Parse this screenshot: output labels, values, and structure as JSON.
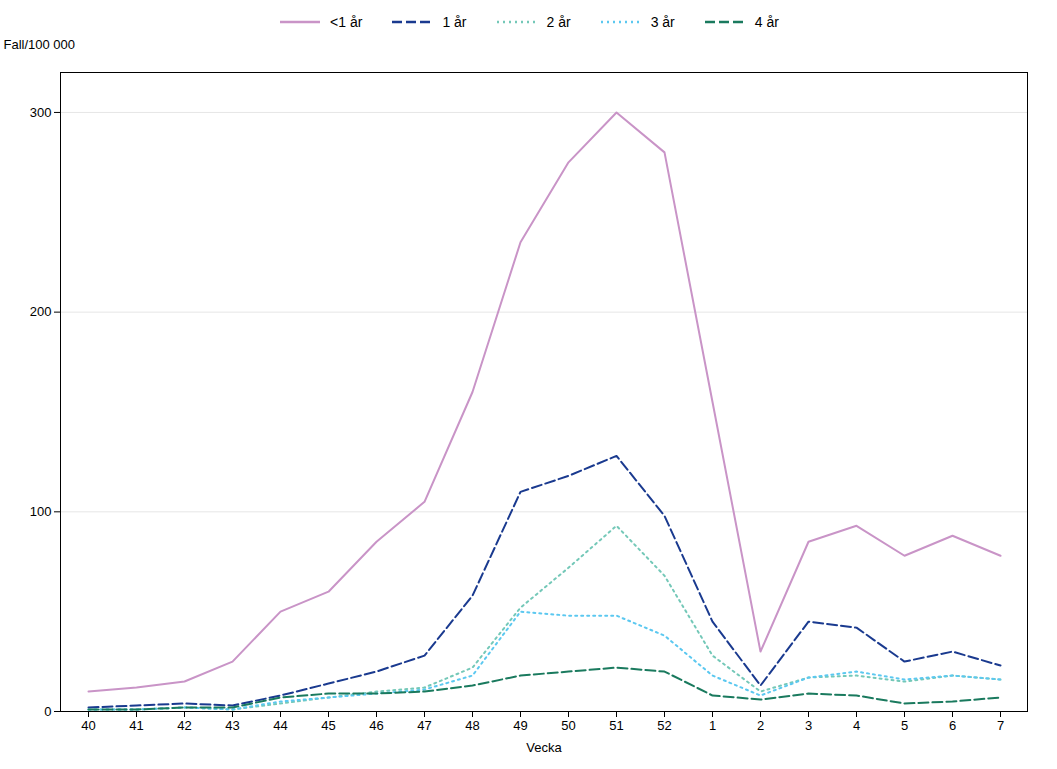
{
  "chart_data": {
    "type": "line",
    "xlabel": "Vecka",
    "ylabel": "Fall/100 000",
    "categories": [
      "40",
      "41",
      "42",
      "43",
      "44",
      "45",
      "46",
      "47",
      "48",
      "49",
      "50",
      "51",
      "52",
      "1",
      "2",
      "3",
      "4",
      "5",
      "6",
      "7"
    ],
    "series": [
      {
        "name": "<1 år",
        "color": "#c994c7",
        "line_style": "solid",
        "values": [
          10,
          12,
          15,
          25,
          50,
          60,
          85,
          105,
          160,
          235,
          275,
          300,
          280,
          155,
          30,
          85,
          93,
          78,
          88,
          78
        ]
      },
      {
        "name": "1 år",
        "color": "#1a3a8f",
        "line_style": "dashed",
        "values": [
          2,
          3,
          4,
          3,
          8,
          14,
          20,
          28,
          58,
          110,
          118,
          128,
          98,
          45,
          13,
          45,
          42,
          25,
          30,
          23
        ]
      },
      {
        "name": "2 år",
        "color": "#74c8b8",
        "line_style": "dotted",
        "values": [
          1,
          1,
          2,
          1,
          4,
          7,
          10,
          12,
          22,
          52,
          72,
          93,
          68,
          28,
          10,
          17,
          18,
          15,
          18,
          16
        ]
      },
      {
        "name": "3 år",
        "color": "#5bc8f0",
        "line_style": "dotted",
        "values": [
          1,
          1,
          2,
          1,
          5,
          7,
          9,
          11,
          18,
          50,
          48,
          48,
          38,
          18,
          8,
          17,
          20,
          16,
          18,
          16
        ]
      },
      {
        "name": "4 år",
        "color": "#1a7a5e",
        "line_style": "dashed",
        "values": [
          1,
          1,
          2,
          2,
          7,
          9,
          9,
          10,
          13,
          18,
          20,
          22,
          20,
          8,
          6,
          9,
          8,
          4,
          5,
          7
        ]
      }
    ],
    "ylim": [
      0,
      320
    ],
    "yticks": [
      0,
      100,
      200,
      300
    ],
    "grid": true,
    "legend": "top"
  }
}
